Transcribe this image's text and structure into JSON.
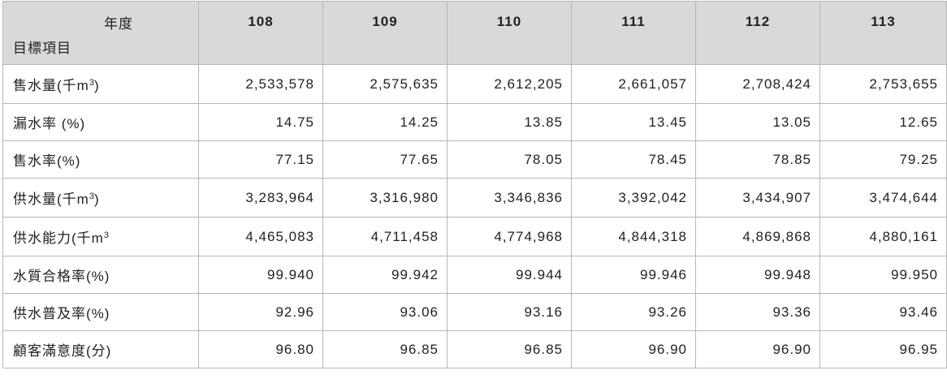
{
  "table": {
    "corner_year_label": "年度",
    "corner_item_label": "目標項目",
    "years": [
      "108",
      "109",
      "110",
      "111",
      "112",
      "113"
    ],
    "rows": [
      {
        "label_pre": "售水量(千m",
        "label_sup": "3",
        "label_post": ")",
        "values": [
          "2,533,578",
          "2,575,635",
          "2,612,205",
          "2,661,057",
          "2,708,424",
          "2,753,655"
        ]
      },
      {
        "label_pre": "漏水率 (%)",
        "label_sup": "",
        "label_post": "",
        "values": [
          "14.75",
          "14.25",
          "13.85",
          "13.45",
          "13.05",
          "12.65"
        ]
      },
      {
        "label_pre": "售水率(%)",
        "label_sup": "",
        "label_post": "",
        "values": [
          "77.15",
          "77.65",
          "78.05",
          "78.45",
          "78.85",
          "79.25"
        ]
      },
      {
        "label_pre": "供水量(千m",
        "label_sup": "3",
        "label_post": ")",
        "values": [
          "3,283,964",
          "3,316,980",
          "3,346,836",
          "3,392,042",
          "3,434,907",
          "3,474,644"
        ]
      },
      {
        "label_pre": "供水能力(千m",
        "label_sup": "3",
        "label_post": "",
        "values": [
          "4,465,083",
          "4,711,458",
          "4,774,968",
          "4,844,318",
          "4,869,868",
          "4,880,161"
        ]
      },
      {
        "label_pre": "水質合格率(%)",
        "label_sup": "",
        "label_post": "",
        "values": [
          "99.940",
          "99.942",
          "99.944",
          "99.946",
          "99.948",
          "99.950"
        ]
      },
      {
        "label_pre": "供水普及率(%)",
        "label_sup": "",
        "label_post": "",
        "values": [
          "92.96",
          "93.06",
          "93.16",
          "93.26",
          "93.36",
          "93.46"
        ]
      },
      {
        "label_pre": "顧客滿意度(分)",
        "label_sup": "",
        "label_post": "",
        "values": [
          "96.80",
          "96.85",
          "96.85",
          "96.90",
          "96.90",
          "96.95"
        ]
      }
    ]
  }
}
